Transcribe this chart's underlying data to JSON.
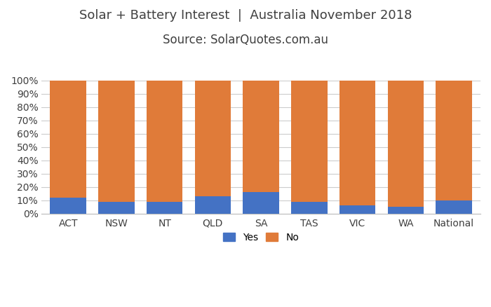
{
  "categories": [
    "ACT",
    "NSW",
    "NT",
    "QLD",
    "SA",
    "TAS",
    "VIC",
    "WA",
    "National"
  ],
  "yes_values": [
    12,
    9,
    9,
    13,
    16,
    9,
    6,
    5,
    10
  ],
  "no_values": [
    88,
    91,
    91,
    87,
    84,
    91,
    94,
    95,
    90
  ],
  "yes_color": "#4472C4",
  "no_color": "#E07B39",
  "title_line1": "Solar + Battery Interest  |  Australia November 2018",
  "title_line2": "Source: SolarQuotes.com.au",
  "ylim": [
    0,
    100
  ],
  "ytick_labels": [
    "0%",
    "10%",
    "20%",
    "30%",
    "40%",
    "50%",
    "60%",
    "70%",
    "80%",
    "90%",
    "100%"
  ],
  "ytick_values": [
    0,
    10,
    20,
    30,
    40,
    50,
    60,
    70,
    80,
    90,
    100
  ],
  "legend_yes": "Yes",
  "legend_no": "No",
  "background_color": "#FFFFFF",
  "bar_width": 0.75,
  "title_fontsize": 13,
  "subtitle_fontsize": 12,
  "tick_fontsize": 10,
  "legend_fontsize": 10,
  "grid_color": "#CCCCCC",
  "text_color": "#404040"
}
